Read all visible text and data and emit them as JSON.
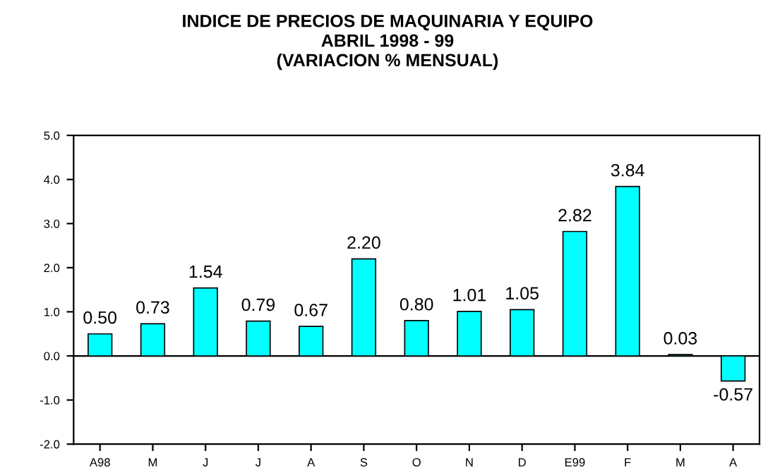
{
  "chart_data": {
    "type": "bar",
    "title": "INDICE DE PRECIOS DE MAQUINARIA Y EQUIPO\nABRIL 1998 - 99\n(VARIACION % MENSUAL)",
    "categories": [
      "A98",
      "M",
      "J",
      "J",
      "A",
      "S",
      "O",
      "N",
      "D",
      "E99",
      "F",
      "M",
      "A"
    ],
    "values": [
      0.5,
      0.73,
      1.54,
      0.79,
      0.67,
      2.2,
      0.8,
      1.01,
      1.05,
      2.82,
      3.84,
      0.03,
      -0.57
    ],
    "value_labels": [
      "0.50",
      "0.73",
      "1.54",
      "0.79",
      "0.67",
      "2.20",
      "0.80",
      "1.01",
      "1.05",
      "2.82",
      "3.84",
      "0.03",
      "-0.57"
    ],
    "color": "#00ffff",
    "grid": false,
    "ylim": [
      -2,
      5
    ],
    "yticks": [
      {
        "value": -2,
        "label": "-2.0"
      },
      {
        "value": -1,
        "label": "-1.0"
      },
      {
        "value": 0,
        "label": "0.0"
      },
      {
        "value": 1,
        "label": "1.0"
      },
      {
        "value": 2,
        "label": "2.0"
      },
      {
        "value": 3,
        "label": "3.0"
      },
      {
        "value": 4,
        "label": "4.0"
      },
      {
        "value": 5,
        "label": "5.0"
      }
    ],
    "ref_lines": [
      {
        "axis": "y",
        "value": 0,
        "color": "#000000"
      }
    ]
  }
}
